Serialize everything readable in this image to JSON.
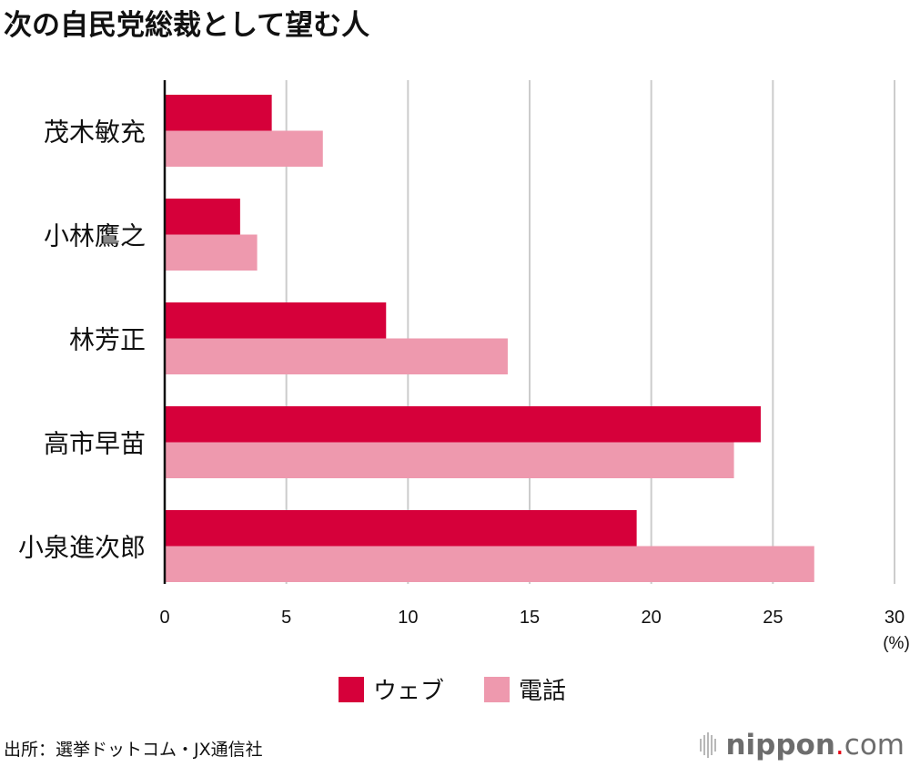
{
  "title": "次の自民党総裁として望む人",
  "chart_data": {
    "type": "bar",
    "orientation": "horizontal",
    "categories": [
      "茂木敏充",
      "小林鷹之",
      "林芳正",
      "高市早苗",
      "小泉進次郎"
    ],
    "series": [
      {
        "name": "ウェブ",
        "color": "#d6003a",
        "values": [
          4.4,
          3.1,
          9.1,
          24.5,
          19.4
        ]
      },
      {
        "name": "電話",
        "color": "#ee99ae",
        "values": [
          6.5,
          3.8,
          14.1,
          23.4,
          26.7
        ]
      }
    ],
    "xlim": [
      0,
      30
    ],
    "xticks": [
      "0",
      "5",
      "10",
      "15",
      "20",
      "25",
      "30"
    ],
    "xunit": "(%)",
    "grid": true,
    "legend": "bottom"
  },
  "source": "出所：選挙ドットコム・JX通信社",
  "logo": {
    "main": "nippon",
    "dot": ".",
    "suffix": "com",
    "dot_color": "#e60012"
  }
}
